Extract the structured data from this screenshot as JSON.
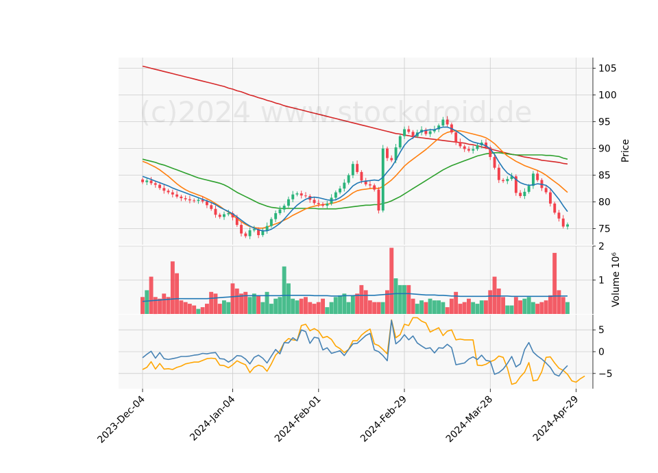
{
  "chart_data": {
    "type": "candlestick",
    "watermark": "(c)2024 www.stockdroid.de",
    "colors": {
      "up": "#2ab37a",
      "down": "#f2414c",
      "ma_fast": "#1f77b4",
      "ma_mid": "#ff7f0e",
      "ma_slow": "#2ca02c",
      "ma_long": "#d62728",
      "volume_ma": "#1f77b4",
      "osc_a": "#4682b4",
      "osc_b": "#ffa500",
      "panel_bg": "#f8f8f8",
      "grid": "#cccccc"
    },
    "x_ticks": [
      "2023-Dec-04",
      "2024-Jan-04",
      "2024-Feb-01",
      "2024-Feb-29",
      "2024-Mar-28",
      "2024-Apr-29"
    ],
    "price": {
      "ylabel": "Price",
      "ylim": [
        72,
        107
      ],
      "yticks": [
        75,
        80,
        85,
        90,
        95,
        100,
        105
      ],
      "close": [
        83.7,
        84.0,
        83.5,
        83.2,
        82.6,
        82.1,
        81.8,
        81.4,
        81.0,
        80.7,
        80.5,
        80.3,
        80.2,
        80.4,
        80.1,
        79.4,
        78.7,
        77.6,
        77.2,
        77.7,
        77.9,
        77.1,
        75.7,
        74.1,
        73.6,
        74.7,
        74.9,
        73.8,
        74.6,
        75.5,
        76.8,
        77.9,
        78.6,
        79.3,
        80.5,
        81.4,
        81.6,
        81.2,
        81.1,
        80.4,
        79.8,
        79.6,
        79.3,
        79.7,
        80.8,
        81.8,
        82.5,
        83.6,
        85.0,
        87.1,
        85.6,
        84.0,
        83.3,
        83.1,
        82.3,
        78.4,
        90.0,
        88.2,
        87.8,
        90.2,
        92.3,
        93.6,
        93.1,
        92.3,
        93.0,
        93.5,
        92.7,
        93.2,
        93.6,
        94.3,
        95.4,
        94.5,
        93.0,
        91.2,
        90.4,
        89.9,
        89.6,
        89.9,
        90.6,
        91.1,
        90.2,
        88.4,
        86.4,
        84.1,
        83.9,
        84.3,
        84.8,
        81.7,
        81.1,
        81.9,
        83.0,
        85.3,
        84.1,
        82.6,
        81.8,
        79.7,
        78.0,
        76.9,
        75.4,
        75.8
      ],
      "ma_fast": [
        84.8,
        84.5,
        84.2,
        83.9,
        83.6,
        83.3,
        83.0,
        82.6,
        82.3,
        82.0,
        81.7,
        81.4,
        81.1,
        80.8,
        80.5,
        80.2,
        79.9,
        79.5,
        79.0,
        78.6,
        78.2,
        77.8,
        77.2,
        76.6,
        76.0,
        75.5,
        75.1,
        74.8,
        74.6,
        74.6,
        74.9,
        75.4,
        76.0,
        76.8,
        77.7,
        78.6,
        79.4,
        80.0,
        80.5,
        80.8,
        80.9,
        80.8,
        80.6,
        80.4,
        80.3,
        80.4,
        80.8,
        81.4,
        82.1,
        83.0,
        83.5,
        83.8,
        83.9,
        84.0,
        84.1,
        84.0,
        84.6,
        85.6,
        86.5,
        87.8,
        89.3,
        90.6,
        91.5,
        92.0,
        92.7,
        93.2,
        93.4,
        93.5,
        93.5,
        93.8,
        94.0,
        94.0,
        93.7,
        93.3,
        92.8,
        92.2,
        91.6,
        91.2,
        91.0,
        90.8,
        90.5,
        89.9,
        88.9,
        87.5,
        86.3,
        85.4,
        84.9,
        84.2,
        83.6,
        83.3,
        83.1,
        83.2,
        83.4,
        83.3,
        83.1,
        82.5,
        81.5,
        80.5,
        79.3,
        78.2
      ],
      "ma_mid": [
        87.6,
        87.3,
        86.9,
        86.5,
        86.0,
        85.4,
        84.8,
        84.1,
        83.4,
        82.8,
        82.3,
        81.9,
        81.6,
        81.3,
        81.0,
        80.6,
        80.2,
        79.7,
        79.2,
        78.6,
        78.1,
        77.5,
        76.9,
        76.3,
        75.8,
        75.4,
        75.2,
        75.1,
        75.1,
        75.3,
        75.6,
        75.9,
        76.2,
        76.6,
        77.0,
        77.5,
        77.9,
        78.3,
        78.7,
        79.0,
        79.2,
        79.4,
        79.5,
        79.6,
        79.7,
        79.9,
        80.2,
        80.6,
        81.1,
        81.7,
        82.1,
        82.3,
        82.4,
        82.5,
        82.6,
        82.5,
        82.9,
        83.5,
        84.1,
        84.9,
        85.8,
        86.7,
        87.4,
        88.0,
        88.6,
        89.2,
        89.8,
        90.5,
        91.2,
        91.9,
        92.6,
        93.0,
        93.2,
        93.3,
        93.3,
        93.1,
        92.9,
        92.7,
        92.5,
        92.3,
        92.0,
        91.5,
        90.9,
        90.1,
        89.3,
        88.6,
        88.1,
        87.6,
        87.2,
        86.8,
        86.5,
        86.2,
        85.9,
        85.5,
        85.0,
        84.4,
        83.8,
        83.2,
        82.5,
        81.8
      ],
      "ma_slow": [
        88.0,
        87.8,
        87.6,
        87.4,
        87.1,
        86.9,
        86.6,
        86.3,
        86.0,
        85.7,
        85.4,
        85.1,
        84.8,
        84.5,
        84.3,
        84.1,
        83.9,
        83.7,
        83.5,
        83.2,
        82.8,
        82.3,
        81.8,
        81.4,
        81.0,
        80.6,
        80.2,
        79.8,
        79.5,
        79.2,
        79.0,
        78.9,
        78.8,
        78.8,
        78.8,
        78.8,
        78.8,
        78.8,
        78.8,
        78.8,
        78.8,
        78.7,
        78.7,
        78.7,
        78.7,
        78.7,
        78.8,
        78.9,
        79.0,
        79.1,
        79.2,
        79.3,
        79.4,
        79.4,
        79.5,
        79.5,
        79.7,
        79.9,
        80.2,
        80.6,
        81.0,
        81.5,
        82.0,
        82.5,
        83.0,
        83.5,
        84.0,
        84.5,
        85.0,
        85.5,
        86.0,
        86.4,
        86.8,
        87.1,
        87.4,
        87.7,
        88.0,
        88.3,
        88.6,
        88.8,
        89.0,
        89.1,
        89.2,
        89.2,
        89.1,
        89.0,
        88.9,
        88.8,
        88.8,
        88.8,
        88.8,
        88.8,
        88.8,
        88.8,
        88.7,
        88.7,
        88.6,
        88.5,
        88.2,
        88.0
      ],
      "ma_long": [
        105.4,
        105.2,
        105.0,
        104.8,
        104.6,
        104.4,
        104.2,
        104.0,
        103.8,
        103.6,
        103.4,
        103.2,
        103.0,
        102.8,
        102.6,
        102.4,
        102.2,
        102.0,
        101.8,
        101.6,
        101.3,
        101.1,
        100.8,
        100.6,
        100.3,
        100.0,
        99.8,
        99.5,
        99.3,
        99.0,
        98.8,
        98.5,
        98.3,
        98.0,
        97.8,
        97.6,
        97.4,
        97.2,
        97.0,
        96.8,
        96.6,
        96.4,
        96.2,
        96.0,
        95.8,
        95.6,
        95.4,
        95.2,
        95.0,
        94.8,
        94.6,
        94.4,
        94.2,
        94.0,
        93.8,
        93.6,
        93.4,
        93.2,
        93.0,
        92.8,
        92.7,
        92.5,
        92.4,
        92.2,
        92.1,
        92.0,
        91.9,
        91.8,
        91.7,
        91.6,
        91.5,
        91.4,
        91.3,
        91.2,
        91.1,
        91.0,
        90.8,
        90.7,
        90.5,
        90.3,
        90.1,
        89.9,
        89.7,
        89.5,
        89.3,
        89.1,
        88.9,
        88.8,
        88.6,
        88.4,
        88.3,
        88.1,
        88.0,
        87.8,
        87.7,
        87.6,
        87.5,
        87.4,
        87.2,
        87.1
      ]
    },
    "volume": {
      "ylabel": "Volume",
      "multiplier": "10⁶",
      "ylim": [
        0,
        2
      ],
      "yticks": [
        1,
        2
      ],
      "values": [
        0.5,
        0.7,
        1.1,
        0.5,
        0.45,
        0.6,
        0.5,
        1.55,
        1.2,
        0.4,
        0.35,
        0.3,
        0.25,
        0.15,
        0.2,
        0.3,
        0.65,
        0.6,
        0.3,
        0.4,
        0.35,
        0.9,
        0.75,
        0.6,
        0.65,
        0.5,
        0.6,
        0.55,
        0.35,
        0.65,
        0.3,
        0.45,
        0.5,
        1.4,
        0.9,
        0.45,
        0.4,
        0.45,
        0.5,
        0.35,
        0.3,
        0.35,
        0.45,
        0.2,
        0.35,
        0.5,
        0.55,
        0.6,
        0.35,
        0.55,
        0.6,
        0.85,
        0.7,
        0.4,
        0.35,
        0.35,
        0.35,
        0.7,
        1.95,
        1.05,
        0.85,
        0.85,
        0.85,
        0.45,
        0.3,
        0.4,
        0.35,
        0.45,
        0.4,
        0.4,
        0.35,
        0.2,
        0.45,
        0.65,
        0.3,
        0.35,
        0.45,
        0.35,
        0.3,
        0.4,
        0.4,
        0.7,
        1.1,
        0.75,
        0.5,
        0.25,
        0.25,
        0.5,
        0.4,
        0.45,
        0.5,
        0.35,
        0.3,
        0.35,
        0.4,
        0.55,
        1.8,
        0.7,
        0.5,
        0.35
      ],
      "ma": [
        0.37,
        0.38,
        0.39,
        0.4,
        0.41,
        0.42,
        0.43,
        0.44,
        0.45,
        0.45,
        0.45,
        0.45,
        0.45,
        0.45,
        0.45,
        0.45,
        0.46,
        0.47,
        0.48,
        0.49,
        0.5,
        0.51,
        0.52,
        0.53,
        0.54,
        0.54,
        0.54,
        0.54,
        0.54,
        0.54,
        0.54,
        0.54,
        0.54,
        0.55,
        0.55,
        0.55,
        0.55,
        0.55,
        0.55,
        0.55,
        0.54,
        0.54,
        0.54,
        0.54,
        0.53,
        0.53,
        0.53,
        0.54,
        0.54,
        0.54,
        0.55,
        0.55,
        0.55,
        0.55,
        0.55,
        0.56,
        0.57,
        0.58,
        0.59,
        0.6,
        0.6,
        0.6,
        0.6,
        0.59,
        0.58,
        0.57,
        0.56,
        0.56,
        0.56,
        0.55,
        0.55,
        0.54,
        0.53,
        0.53,
        0.52,
        0.52,
        0.52,
        0.52,
        0.52,
        0.52,
        0.52,
        0.53,
        0.53,
        0.53,
        0.53,
        0.53,
        0.52,
        0.52,
        0.52,
        0.52,
        0.52,
        0.52,
        0.52,
        0.52,
        0.52,
        0.52,
        0.53,
        0.53,
        0.53,
        0.53
      ]
    },
    "oscillator": {
      "ylim": [
        -8.5,
        8.5
      ],
      "yticks": [
        -5,
        0,
        5
      ],
      "series_a": [
        -1.4,
        -0.6,
        0.1,
        -1.5,
        -0.2,
        -1.6,
        -1.8,
        -1.6,
        -1.4,
        -1.1,
        -1.1,
        -1.0,
        -0.8,
        -0.7,
        -0.4,
        -0.5,
        -0.3,
        -0.2,
        -1.6,
        -1.7,
        -2.4,
        -1.8,
        -0.9,
        -1.0,
        -1.7,
        -2.8,
        -1.3,
        -0.8,
        -1.5,
        -2.6,
        -1.0,
        0.5,
        -0.5,
        2.1,
        2.0,
        3.2,
        2.5,
        5.0,
        4.6,
        1.9,
        3.3,
        3.1,
        0.4,
        0.9,
        -0.4,
        -0.1,
        0.2,
        -0.9,
        0.5,
        1.8,
        1.9,
        2.8,
        3.7,
        4.2,
        0.4,
        0.0,
        -0.9,
        -2.1,
        7.2,
        1.8,
        2.6,
        3.9,
        2.7,
        3.6,
        2.0,
        1.3,
        0.7,
        0.9,
        -0.3,
        0.9,
        0.8,
        1.7,
        0.9,
        -3.0,
        -2.8,
        -2.6,
        -1.7,
        -1.2,
        -1.8,
        -0.8,
        -2.0,
        -2.2,
        -5.2,
        -4.8,
        -4.0,
        -2.7,
        -1.1,
        -3.5,
        -2.8,
        0.5,
        2.1,
        -0.1,
        -1.0,
        -1.7,
        -2.6,
        -3.6,
        -5.2,
        -5.6,
        -4.2,
        -3.2
      ],
      "series_b": [
        -4.1,
        -3.6,
        -2.3,
        -4.0,
        -2.7,
        -4.0,
        -3.9,
        -4.1,
        -3.6,
        -3.3,
        -2.8,
        -2.6,
        -2.4,
        -2.4,
        -2.0,
        -1.6,
        -1.5,
        -1.6,
        -3.1,
        -3.2,
        -3.7,
        -3.0,
        -2.1,
        -2.6,
        -3.0,
        -4.8,
        -3.6,
        -3.1,
        -3.4,
        -4.5,
        -2.8,
        -0.8,
        0.2,
        2.1,
        3.0,
        2.7,
        2.6,
        6.0,
        6.3,
        4.8,
        5.3,
        4.7,
        3.2,
        3.5,
        2.8,
        1.3,
        0.7,
        -0.2,
        0.5,
        2.5,
        2.5,
        3.8,
        4.6,
        5.2,
        1.8,
        1.4,
        0.5,
        -0.5,
        7.3,
        3.2,
        3.9,
        6.3,
        6.0,
        7.8,
        7.8,
        7.0,
        6.6,
        4.5,
        5.0,
        5.5,
        3.7,
        4.7,
        5.0,
        2.7,
        2.9,
        2.7,
        2.7,
        2.7,
        -3.1,
        -3.2,
        -2.9,
        -2.3,
        -1.9,
        -1.0,
        -1.3,
        -3.8,
        -7.5,
        -7.2,
        -5.8,
        -4.7,
        -2.5,
        -6.7,
        -6.5,
        -4.6,
        -1.3,
        -1.2,
        -2.6,
        -3.8,
        -4.3,
        -5.2,
        -6.7,
        -7.0,
        -6.2,
        -5.6
      ]
    }
  }
}
